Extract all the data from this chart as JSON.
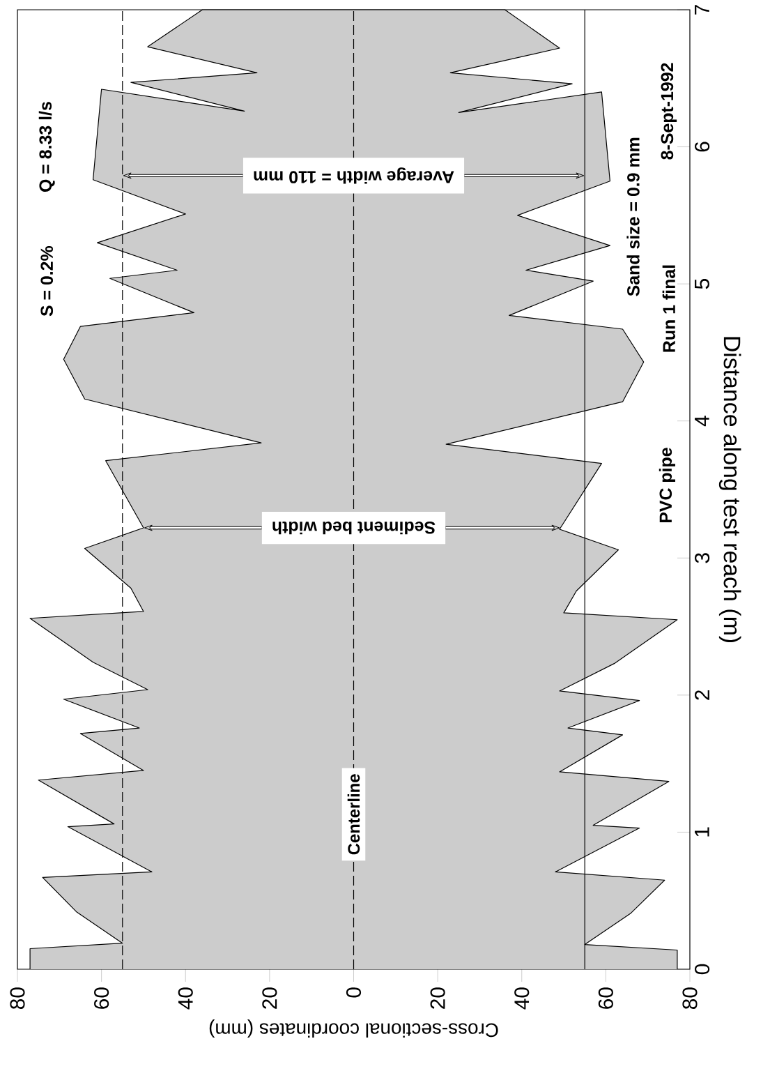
{
  "chart_data": {
    "type": "area",
    "xlabel": "Cross-sectional coordinates (mm)",
    "ylabel": "Distance along test reach (m)",
    "xlim": [
      -80,
      80
    ],
    "xticks": [
      {
        "value": -80,
        "label": "80"
      },
      {
        "value": -60,
        "label": "60"
      },
      {
        "value": -40,
        "label": "40"
      },
      {
        "value": -20,
        "label": "20"
      },
      {
        "value": 0,
        "label": "0"
      },
      {
        "value": 20,
        "label": "20"
      },
      {
        "value": 40,
        "label": "40"
      },
      {
        "value": 60,
        "label": "60"
      },
      {
        "value": 80,
        "label": "80"
      }
    ],
    "ylim": [
      0,
      7
    ],
    "yticks": [
      0,
      1,
      2,
      3,
      4,
      5,
      6,
      7
    ],
    "series": [
      {
        "color": "#cccccc",
        "x": [
          -77,
          -77,
          -55,
          -66,
          -74,
          -48,
          -68,
          -57,
          -75,
          -50,
          -65,
          -51,
          -69,
          -49,
          -62,
          -77,
          -50,
          -53,
          -64,
          -50,
          -59,
          -22,
          -64,
          -69,
          -65,
          -38,
          -58,
          -42,
          -61,
          -40,
          -62,
          -60,
          -26,
          -53,
          -23,
          -49,
          -36,
          36,
          49,
          23,
          52,
          25,
          59,
          61,
          39,
          61,
          41,
          57,
          37,
          64,
          69,
          64,
          22,
          59,
          49,
          63,
          53,
          50,
          77,
          62,
          49,
          68,
          51,
          64,
          49,
          75,
          57,
          68,
          48,
          74,
          66,
          55,
          77,
          77
        ],
        "values": [
          0,
          0.15,
          0.19,
          0.42,
          0.67,
          0.71,
          1.04,
          1.06,
          1.38,
          1.45,
          1.72,
          1.76,
          1.97,
          2.04,
          2.24,
          2.56,
          2.61,
          2.78,
          3.07,
          3.22,
          3.71,
          3.84,
          4.16,
          4.45,
          4.69,
          4.79,
          5.04,
          5.1,
          5.3,
          5.51,
          5.76,
          6.42,
          6.26,
          6.47,
          6.54,
          6.73,
          7.0,
          7.0,
          6.72,
          6.54,
          6.46,
          6.25,
          6.4,
          5.75,
          5.5,
          5.28,
          5.1,
          5.02,
          4.77,
          4.67,
          4.43,
          4.14,
          3.83,
          3.69,
          3.21,
          3.06,
          2.76,
          2.6,
          2.55,
          2.23,
          2.03,
          1.96,
          1.76,
          1.71,
          1.44,
          1.37,
          1.05,
          1.03,
          0.71,
          0.65,
          0.41,
          0.18,
          0.14,
          0
        ]
      }
    ],
    "ref_lines": [
      {
        "axis": "x",
        "value": -55,
        "line_style": "dashed"
      },
      {
        "axis": "x",
        "value": 0,
        "label": "Centerline",
        "line_style": "dashed"
      },
      {
        "axis": "x",
        "value": 55,
        "line_style": "solid"
      }
    ],
    "annotations": [
      {
        "text": "Sediment bed width",
        "x": 0,
        "y": 3.22
      },
      {
        "text": "Average width = 110 mm",
        "x": 0,
        "y": 5.79
      },
      "S = 0.2%",
      "Q = 8.33 l/s",
      "PVC pipe",
      "Run 1 final",
      "8-Sept-1992",
      "Sand size = 0.9 mm"
    ],
    "grid": false
  }
}
